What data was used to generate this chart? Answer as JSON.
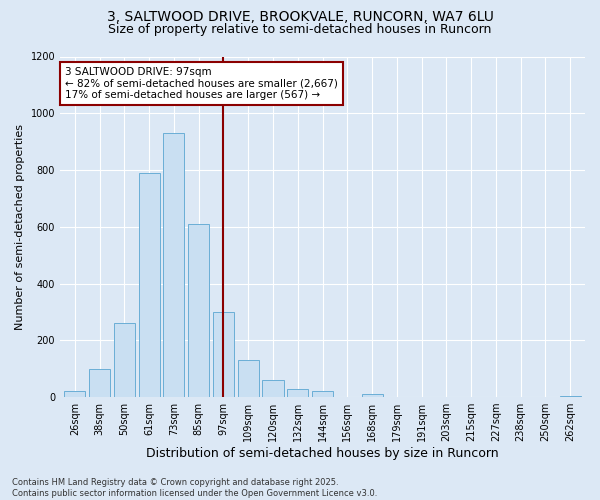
{
  "title1": "3, SALTWOOD DRIVE, BROOKVALE, RUNCORN, WA7 6LU",
  "title2": "Size of property relative to semi-detached houses in Runcorn",
  "xlabel": "Distribution of semi-detached houses by size in Runcorn",
  "ylabel": "Number of semi-detached properties",
  "categories": [
    "26sqm",
    "38sqm",
    "50sqm",
    "61sqm",
    "73sqm",
    "85sqm",
    "97sqm",
    "109sqm",
    "120sqm",
    "132sqm",
    "144sqm",
    "156sqm",
    "168sqm",
    "179sqm",
    "191sqm",
    "203sqm",
    "215sqm",
    "227sqm",
    "238sqm",
    "250sqm",
    "262sqm"
  ],
  "values": [
    20,
    100,
    260,
    790,
    930,
    610,
    300,
    130,
    60,
    30,
    20,
    0,
    10,
    0,
    0,
    0,
    0,
    0,
    0,
    0,
    5
  ],
  "bar_color": "#c9dff2",
  "bar_edge_color": "#6aaed6",
  "vline_color": "#8b0000",
  "vline_index": 6.5,
  "annotation_text": "3 SALTWOOD DRIVE: 97sqm\n← 82% of semi-detached houses are smaller (2,667)\n17% of semi-detached houses are larger (567) →",
  "annotation_box_color": "white",
  "annotation_box_edge": "#8b0000",
  "footer_text": "Contains HM Land Registry data © Crown copyright and database right 2025.\nContains public sector information licensed under the Open Government Licence v3.0.",
  "ylim": [
    0,
    1200
  ],
  "yticks": [
    0,
    200,
    400,
    600,
    800,
    1000,
    1200
  ],
  "background_color": "#dce8f5",
  "plot_bg_color": "#dce8f5",
  "title1_fontsize": 10,
  "title2_fontsize": 9,
  "ylabel_fontsize": 8,
  "xlabel_fontsize": 9,
  "tick_fontsize": 7,
  "footer_fontsize": 6
}
